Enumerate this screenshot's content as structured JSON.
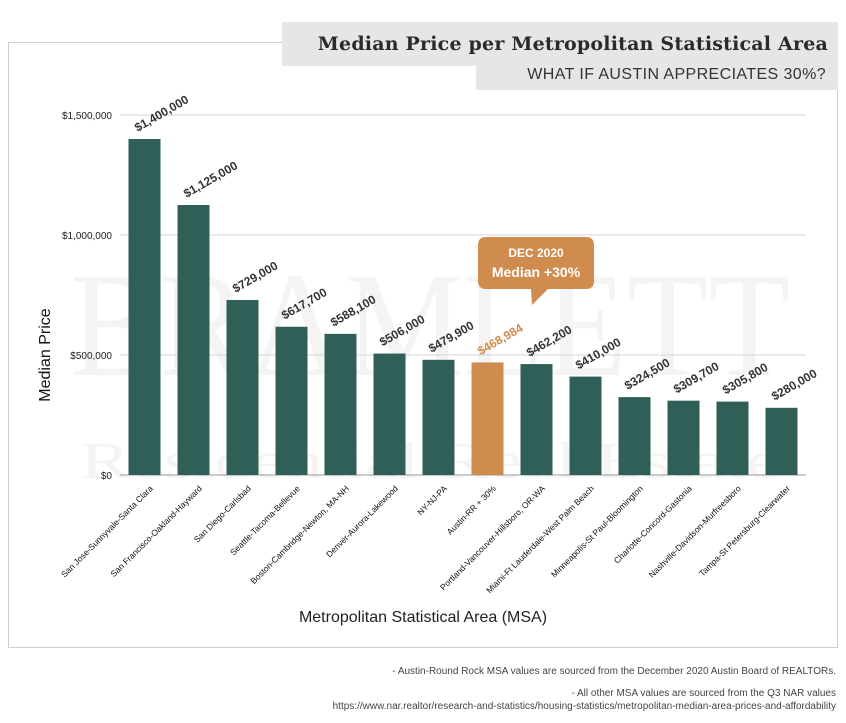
{
  "title": "Median Price per Metropolitan Statistical Area",
  "subtitle": "WHAT IF AUSTIN APPRECIATES 30%?",
  "callout": {
    "line1": "DEC 2020",
    "line2": "Median +30%"
  },
  "watermark": {
    "line1": "BRAMLETT",
    "line2": "Residential Real Estate"
  },
  "footnotes": {
    "line1": "- Austin-Round Rock MSA values are sourced from the December 2020 Austin Board of REALTORs.",
    "line2": "- All other MSA values are sourced from the Q3 NAR values",
    "line3": "https://www.nar.realtor/research-and-statistics/housing-statistics/metropolitan-median-area-prices-and-affordability"
  },
  "colors": {
    "bar": "#2f5f57",
    "highlight": "#d08c4e",
    "label": "#333333",
    "highlight_label": "#d08c4e"
  },
  "chart_data": {
    "type": "bar",
    "title": "Median Price per Metropolitan Statistical Area",
    "subtitle": "WHAT IF AUSTIN APPRECIATES 30%?",
    "xlabel": "Metropolitan Statistical Area (MSA)",
    "ylabel": "Median Price",
    "ylim": [
      0,
      1500000
    ],
    "yticks": [
      0,
      500000,
      1000000,
      1500000
    ],
    "ytick_labels": [
      "$0",
      "$500,000",
      "$1,000,000",
      "$1,500,000"
    ],
    "grid": true,
    "highlight_index": 7,
    "categories": [
      "San Jose-Sunnyvale-Santa Clara",
      "San Francisco-Oakland-Hayward",
      "San Diego-Carlsbad",
      "Seattle-Tacoma-Bellevue",
      "Boston-Cambridge-Newton, MA-NH",
      "Denver-Aurora-Lakewood",
      "NY-NJ-PA",
      "Austin-RR + 30%",
      "Portland-Vancouver-Hillsboro, OR-WA",
      "Miami-Ft Lauderdale-West Palm Beach",
      "Minneapolis-St Paul-Bloomington",
      "Charlotte-Concord-Gastonia",
      "Nashville-Davidson-Murfreesboro",
      "Tampa-St Petersburg-Clearwater"
    ],
    "values": [
      1400000,
      1125000,
      729000,
      617700,
      588100,
      506000,
      479900,
      468984,
      462200,
      410000,
      324500,
      309700,
      305800,
      280000
    ],
    "value_labels": [
      "$1,400,000",
      "$1,125,000",
      "$729,000",
      "$617,700",
      "$588,100",
      "$506,000",
      "$479,900",
      "$468,984",
      "$462,200",
      "$410,000",
      "$324,500",
      "$309,700",
      "$305,800",
      "$280,000"
    ]
  }
}
